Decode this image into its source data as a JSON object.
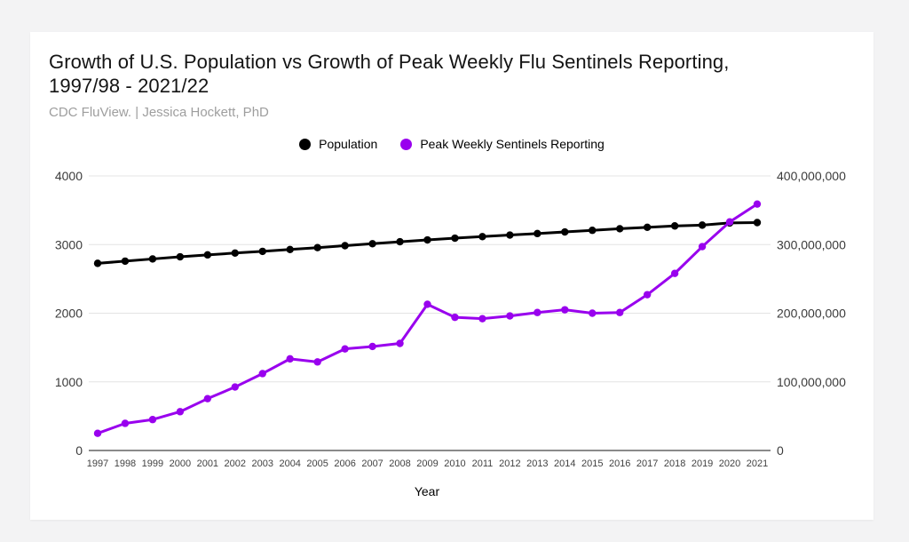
{
  "header": {
    "title_line1": "Growth of U.S. Population vs Growth of Peak Weekly Flu Sentinels Reporting,",
    "title_line2": "1997/98 - 2021/22",
    "subtitle": "CDC FluView. | Jessica Hockett, PhD"
  },
  "legend": [
    {
      "label": "Population",
      "color": "#000000"
    },
    {
      "label": "Peak Weekly Sentinels Reporting",
      "color": "#9900ee"
    }
  ],
  "colors": {
    "page_background": "#f3f3f4",
    "card_background": "#ffffff",
    "gridline": "#e4e4e4",
    "axis_line": "#8a8a8a",
    "population_series": "#000000",
    "sentinels_series": "#9900ee"
  },
  "chart_data": {
    "type": "line",
    "xlabel": "Year",
    "x": [
      1997,
      1998,
      1999,
      2000,
      2001,
      2002,
      2003,
      2004,
      2005,
      2006,
      2007,
      2008,
      2009,
      2010,
      2011,
      2012,
      2013,
      2014,
      2015,
      2016,
      2017,
      2018,
      2019,
      2020,
      2021
    ],
    "left_axis": {
      "min": 0,
      "max": 4000,
      "ticks": [
        {
          "value": 0,
          "label": "0"
        },
        {
          "value": 1000,
          "label": "1000"
        },
        {
          "value": 2000,
          "label": "2000"
        },
        {
          "value": 3000,
          "label": "3000"
        },
        {
          "value": 4000,
          "label": "4000"
        }
      ]
    },
    "right_axis": {
      "min": 0,
      "max": 400000000,
      "ticks": [
        {
          "value": 0,
          "label": "0"
        },
        {
          "value": 100000000,
          "label": "100,000,000"
        },
        {
          "value": 200000000,
          "label": "200,000,000"
        },
        {
          "value": 300000000,
          "label": "300,000,000"
        },
        {
          "value": 400000000,
          "label": "400,000,000"
        }
      ]
    },
    "series": [
      {
        "name": "Population",
        "axis": "right",
        "color": "#000000",
        "values": [
          272650000,
          275850000,
          279040000,
          282160000,
          284970000,
          287630000,
          290110000,
          292810000,
          295520000,
          298380000,
          301230000,
          304090000,
          306770000,
          309330000,
          311580000,
          313870000,
          316060000,
          318390000,
          320740000,
          323070000,
          325150000,
          327170000,
          328330000,
          331500000,
          332030000
        ]
      },
      {
        "name": "Peak Weekly Sentinels Reporting",
        "axis": "left",
        "color": "#9900ee",
        "values": [
          250,
          395,
          450,
          565,
          755,
          925,
          1120,
          1335,
          1290,
          1480,
          1515,
          1560,
          2130,
          1940,
          1920,
          1960,
          2010,
          2050,
          2000,
          2010,
          2270,
          2580,
          2970,
          3330,
          3590
        ]
      }
    ],
    "grid": true,
    "legend_position": "top-center"
  }
}
